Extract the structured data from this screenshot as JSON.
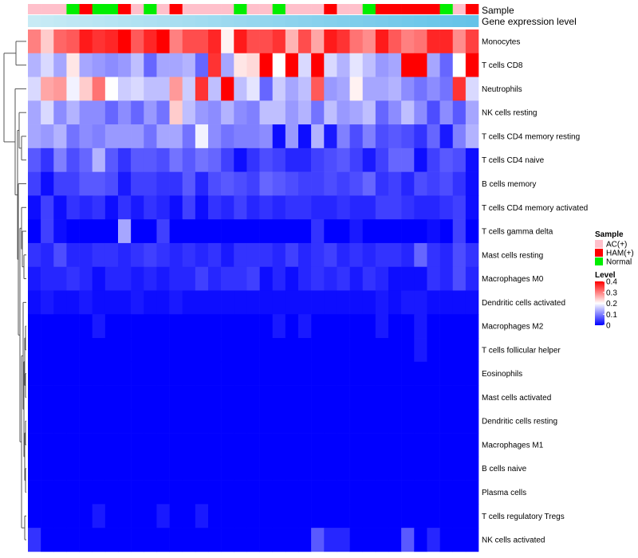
{
  "chart_data": {
    "type": "heatmap",
    "title": "",
    "annotation_rows": [
      "Sample",
      "Gene expression level"
    ],
    "row_labels": [
      "Monocytes",
      "T cells CD8",
      "Neutrophils",
      "NK cells resting",
      "T cells CD4 memory resting",
      "T cells CD4 naive",
      "B cells memory",
      "T cells CD4 memory activated",
      "T cells gamma delta",
      "Mast cells resting",
      "Macrophages M0",
      "Dendritic cells activated",
      "Macrophages M2",
      "T cells follicular helper",
      "Eosinophils",
      "Mast cells activated",
      "Dendritic cells resting",
      "Macrophages M1",
      "B cells naive",
      "Plasma cells",
      "T cells regulatory  Tregs",
      "NK cells activated"
    ],
    "sample_groups": [
      "AC(+)",
      "AC(+)",
      "AC(+)",
      "Normal",
      "HAM(+)",
      "Normal",
      "Normal",
      "HAM(+)",
      "AC(+)",
      "Normal",
      "AC(+)",
      "HAM(+)",
      "AC(+)",
      "AC(+)",
      "AC(+)",
      "AC(+)",
      "Normal",
      "AC(+)",
      "AC(+)",
      "Normal",
      "AC(+)",
      "AC(+)",
      "AC(+)",
      "HAM(+)",
      "AC(+)",
      "AC(+)",
      "Normal",
      "HAM(+)",
      "HAM(+)",
      "HAM(+)",
      "HAM(+)",
      "HAM(+)",
      "Normal",
      "AC(+)",
      "HAM(+)"
    ],
    "values": [
      [
        0.3,
        0.24,
        0.32,
        0.33,
        0.38,
        0.36,
        0.37,
        0.41,
        0.33,
        0.37,
        0.4,
        0.3,
        0.34,
        0.34,
        0.37,
        0.21,
        0.38,
        0.34,
        0.34,
        0.36,
        0.26,
        0.34,
        0.27,
        0.38,
        0.36,
        0.31,
        0.29,
        0.38,
        0.33,
        0.3,
        0.31,
        0.37,
        0.37,
        0.29,
        0.35
      ],
      [
        0.14,
        0.17,
        0.13,
        0.22,
        0.13,
        0.12,
        0.11,
        0.12,
        0.15,
        0.08,
        0.13,
        0.13,
        0.14,
        0.08,
        0.36,
        0.13,
        0.22,
        0.23,
        0.41,
        0.2,
        0.41,
        0.17,
        0.41,
        0.17,
        0.14,
        0.18,
        0.15,
        0.12,
        0.13,
        0.41,
        0.41,
        0.13,
        0.08,
        0.2,
        0.41
      ],
      [
        0.17,
        0.27,
        0.28,
        0.19,
        0.24,
        0.31,
        0.2,
        0.16,
        0.17,
        0.15,
        0.15,
        0.28,
        0.16,
        0.36,
        0.15,
        0.41,
        0.15,
        0.18,
        0.08,
        0.16,
        0.13,
        0.15,
        0.33,
        0.12,
        0.13,
        0.21,
        0.13,
        0.13,
        0.14,
        0.11,
        0.09,
        0.11,
        0.09,
        0.36,
        0.17
      ],
      [
        0.13,
        0.17,
        0.11,
        0.14,
        0.11,
        0.11,
        0.08,
        0.11,
        0.08,
        0.12,
        0.09,
        0.24,
        0.15,
        0.12,
        0.11,
        0.14,
        0.11,
        0.1,
        0.15,
        0.15,
        0.12,
        0.14,
        0.09,
        0.15,
        0.12,
        0.13,
        0.15,
        0.08,
        0.11,
        0.15,
        0.11,
        0.06,
        0.11,
        0.07,
        0.13
      ],
      [
        0.13,
        0.12,
        0.14,
        0.09,
        0.11,
        0.1,
        0.12,
        0.12,
        0.12,
        0.09,
        0.13,
        0.13,
        0.09,
        0.19,
        0.11,
        0.09,
        0.1,
        0.1,
        0.11,
        0.01,
        0.12,
        0.01,
        0.14,
        0.02,
        0.1,
        0.06,
        0.1,
        0.06,
        0.07,
        0.06,
        0.04,
        0.08,
        0.02,
        0.1,
        0.14
      ],
      [
        0.07,
        0.04,
        0.1,
        0.06,
        0.08,
        0.14,
        0.07,
        0.04,
        0.07,
        0.07,
        0.06,
        0.09,
        0.07,
        0.09,
        0.08,
        0.05,
        0.01,
        0.04,
        0.06,
        0.05,
        0.03,
        0.03,
        0.05,
        0.06,
        0.07,
        0.05,
        0.02,
        0.05,
        0.08,
        0.08,
        0.01,
        0.05,
        0.07,
        0.06,
        0.01
      ],
      [
        0.05,
        0.01,
        0.05,
        0.05,
        0.07,
        0.07,
        0.06,
        0.02,
        0.05,
        0.05,
        0.04,
        0.04,
        0.07,
        0.03,
        0.06,
        0.07,
        0.06,
        0.05,
        0.08,
        0.07,
        0.06,
        0.05,
        0.05,
        0.06,
        0.05,
        0.06,
        0.08,
        0.04,
        0.05,
        0.03,
        0.06,
        0.05,
        0.06,
        0.04,
        0.01
      ],
      [
        0.01,
        0.05,
        0.01,
        0.04,
        0.03,
        0.04,
        0.01,
        0.04,
        0.02,
        0.04,
        0.03,
        0.01,
        0.05,
        0.01,
        0.04,
        0.03,
        0.05,
        0.03,
        0.04,
        0.03,
        0.04,
        0.04,
        0.03,
        0.03,
        0.04,
        0.03,
        0.03,
        0.05,
        0.05,
        0.04,
        0.03,
        0.03,
        0.04,
        0.05,
        0.01
      ],
      [
        0.0,
        0.05,
        0.01,
        0.0,
        0.0,
        0.0,
        0.0,
        0.13,
        0.0,
        0.0,
        0.05,
        0.0,
        0.0,
        0.0,
        0.0,
        0.0,
        0.0,
        0.0,
        0.0,
        0.0,
        0.0,
        0.0,
        0.04,
        0.0,
        0.0,
        0.02,
        0.0,
        0.0,
        0.0,
        0.0,
        0.0,
        0.01,
        0.0,
        0.05,
        0.0
      ],
      [
        0.04,
        0.03,
        0.06,
        0.03,
        0.03,
        0.04,
        0.04,
        0.03,
        0.04,
        0.05,
        0.04,
        0.03,
        0.04,
        0.03,
        0.04,
        0.02,
        0.04,
        0.04,
        0.04,
        0.03,
        0.05,
        0.03,
        0.04,
        0.05,
        0.03,
        0.04,
        0.03,
        0.04,
        0.04,
        0.03,
        0.08,
        0.04,
        0.03,
        0.06,
        0.04
      ],
      [
        0.02,
        0.03,
        0.03,
        0.04,
        0.03,
        0.01,
        0.03,
        0.03,
        0.02,
        0.03,
        0.02,
        0.03,
        0.03,
        0.05,
        0.03,
        0.04,
        0.04,
        0.05,
        0.01,
        0.03,
        0.01,
        0.03,
        0.04,
        0.03,
        0.04,
        0.02,
        0.04,
        0.03,
        0.01,
        0.01,
        0.01,
        0.04,
        0.03,
        0.06,
        0.03
      ],
      [
        0.01,
        0.02,
        0.01,
        0.01,
        0.02,
        0.01,
        0.01,
        0.01,
        0.02,
        0.01,
        0.01,
        0.02,
        0.01,
        0.01,
        0.01,
        0.01,
        0.01,
        0.01,
        0.01,
        0.01,
        0.01,
        0.01,
        0.01,
        0.01,
        0.01,
        0.01,
        0.01,
        0.02,
        0.01,
        0.02,
        0.02,
        0.01,
        0.01,
        0.01,
        0.01
      ],
      [
        0.0,
        0.0,
        0.0,
        0.0,
        0.0,
        0.02,
        0.0,
        0.0,
        0.0,
        0.0,
        0.0,
        0.0,
        0.0,
        0.0,
        0.0,
        0.0,
        0.0,
        0.0,
        0.0,
        0.02,
        0.0,
        0.02,
        0.0,
        0.0,
        0.0,
        0.0,
        0.0,
        0.02,
        0.0,
        0.0,
        0.02,
        0.0,
        0.0,
        0.0,
        0.0
      ],
      [
        0.0,
        0.0,
        0.0,
        0.0,
        0.0,
        0.0,
        0.0,
        0.0,
        0.0,
        0.0,
        0.0,
        0.0,
        0.0,
        0.0,
        0.0,
        0.0,
        0.0,
        0.0,
        0.0,
        0.0,
        0.0,
        0.0,
        0.0,
        0.0,
        0.0,
        0.0,
        0.0,
        0.0,
        0.0,
        0.0,
        0.02,
        0.0,
        0.0,
        0.0,
        0.0
      ],
      [
        0.0,
        0.0,
        0.0,
        0.0,
        0.0,
        0.0,
        0.0,
        0.0,
        0.0,
        0.0,
        0.0,
        0.0,
        0.0,
        0.0,
        0.0,
        0.0,
        0.0,
        0.0,
        0.0,
        0.0,
        0.0,
        0.0,
        0.0,
        0.0,
        0.0,
        0.0,
        0.0,
        0.0,
        0.0,
        0.0,
        0.0,
        0.0,
        0.0,
        0.0,
        0.0
      ],
      [
        0.0,
        0.0,
        0.0,
        0.0,
        0.0,
        0.0,
        0.0,
        0.0,
        0.0,
        0.0,
        0.0,
        0.0,
        0.0,
        0.0,
        0.0,
        0.0,
        0.0,
        0.0,
        0.0,
        0.0,
        0.0,
        0.0,
        0.0,
        0.0,
        0.0,
        0.0,
        0.0,
        0.0,
        0.0,
        0.0,
        0.0,
        0.0,
        0.0,
        0.0,
        0.0
      ],
      [
        0.0,
        0.0,
        0.0,
        0.0,
        0.0,
        0.0,
        0.0,
        0.0,
        0.0,
        0.0,
        0.0,
        0.0,
        0.0,
        0.0,
        0.0,
        0.0,
        0.0,
        0.0,
        0.0,
        0.0,
        0.0,
        0.0,
        0.0,
        0.0,
        0.0,
        0.0,
        0.0,
        0.0,
        0.0,
        0.0,
        0.0,
        0.0,
        0.0,
        0.0,
        0.0
      ],
      [
        0.0,
        0.0,
        0.0,
        0.0,
        0.0,
        0.0,
        0.0,
        0.0,
        0.0,
        0.0,
        0.0,
        0.0,
        0.0,
        0.0,
        0.0,
        0.0,
        0.0,
        0.0,
        0.0,
        0.0,
        0.0,
        0.0,
        0.0,
        0.0,
        0.0,
        0.0,
        0.0,
        0.0,
        0.0,
        0.0,
        0.0,
        0.0,
        0.0,
        0.0,
        0.0
      ],
      [
        0.0,
        0.0,
        0.0,
        0.0,
        0.0,
        0.0,
        0.0,
        0.0,
        0.0,
        0.0,
        0.0,
        0.0,
        0.0,
        0.0,
        0.0,
        0.0,
        0.0,
        0.0,
        0.0,
        0.0,
        0.0,
        0.0,
        0.0,
        0.0,
        0.0,
        0.0,
        0.0,
        0.0,
        0.0,
        0.0,
        0.0,
        0.0,
        0.0,
        0.0,
        0.0
      ],
      [
        0.0,
        0.0,
        0.0,
        0.0,
        0.0,
        0.0,
        0.0,
        0.0,
        0.0,
        0.0,
        0.0,
        0.0,
        0.0,
        0.0,
        0.0,
        0.0,
        0.0,
        0.0,
        0.0,
        0.0,
        0.0,
        0.0,
        0.0,
        0.0,
        0.0,
        0.0,
        0.0,
        0.0,
        0.0,
        0.0,
        0.0,
        0.0,
        0.0,
        0.0,
        0.0
      ],
      [
        0.0,
        0.0,
        0.0,
        0.0,
        0.0,
        0.02,
        0.0,
        0.0,
        0.0,
        0.0,
        0.02,
        0.0,
        0.0,
        0.02,
        0.0,
        0.0,
        0.0,
        0.0,
        0.0,
        0.0,
        0.0,
        0.0,
        0.0,
        0.0,
        0.0,
        0.0,
        0.0,
        0.0,
        0.0,
        0.0,
        0.0,
        0.0,
        0.0,
        0.0,
        0.0
      ],
      [
        0.04,
        0.0,
        0.0,
        0.0,
        0.0,
        0.0,
        0.0,
        0.0,
        0.0,
        0.0,
        0.0,
        0.0,
        0.0,
        0.0,
        0.0,
        0.0,
        0.0,
        0.0,
        0.0,
        0.0,
        0.0,
        0.0,
        0.07,
        0.03,
        0.03,
        0.0,
        0.0,
        0.0,
        0.0,
        0.07,
        0.0,
        0.03,
        0.0,
        0.0,
        0.0
      ]
    ],
    "legend": {
      "sample_title": "Sample",
      "sample_items": [
        {
          "label": "AC(+)",
          "color": "#ffc0cb"
        },
        {
          "label": "HAM(+)",
          "color": "#ff0000"
        },
        {
          "label": "Normal",
          "color": "#00ee00"
        }
      ],
      "level_title": "Level",
      "level_ticks": [
        0.4,
        0.3,
        0.2,
        0.1,
        0
      ],
      "level_range": [
        0,
        0.4
      ]
    },
    "colors": {
      "low": "#0000ff",
      "mid": "#ffffff",
      "high": "#ff0000",
      "gene_expression_bar": "#87ceeb",
      "dendrogram": "#555555"
    }
  }
}
